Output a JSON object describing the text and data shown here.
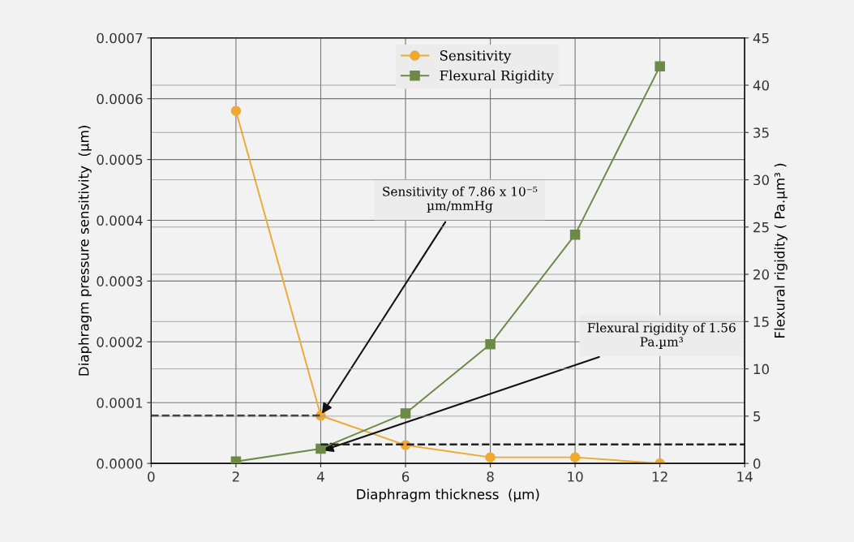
{
  "chart_data": {
    "type": "line",
    "xlabel": "Diaphragm thickness  (µm)",
    "ylabel": "Diaphragm pressure sensitivity  (µm)",
    "y2label": "Flexural rigidity ( Pa.µm³ )",
    "x": [
      2,
      4,
      6,
      8,
      10,
      12
    ],
    "series": [
      {
        "name": "Sensitivity",
        "color": "#f0a830",
        "values": [
          0.00058,
          7.86e-05,
          3e-05,
          1e-05,
          1e-05,
          0
        ],
        "marker": "circle"
      },
      {
        "name": "Flexural Rigidity",
        "color": "#6b8a45",
        "values": [
          0.2,
          1.56,
          5.3,
          12.6,
          24.2,
          42
        ],
        "axis": "y2",
        "marker": "square"
      },
      {
        "color": "#222222",
        "x": [
          0,
          4
        ],
        "values": [
          7.86e-05,
          7.86e-05
        ],
        "line_style": "dashed",
        "marker": "none"
      },
      {
        "color": "#222222",
        "x": [
          4,
          14
        ],
        "values": [
          2,
          2
        ],
        "axis": "y2",
        "line_style": "dashed",
        "marker": "none"
      }
    ],
    "xlim": [
      0,
      14
    ],
    "xticks": [
      0,
      2,
      4,
      6,
      8,
      10,
      12,
      14
    ],
    "ylim": [
      0,
      0.0007
    ],
    "yticks": [
      {
        "value": 0,
        "label": "0.0000"
      },
      {
        "value": 0.0001,
        "label": "0.0001"
      },
      {
        "value": 0.0002,
        "label": "0.0002"
      },
      {
        "value": 0.0003,
        "label": "0.0003"
      },
      {
        "value": 0.0004,
        "label": "0.0004"
      },
      {
        "value": 0.0005,
        "label": "0.0005"
      },
      {
        "value": 0.0006,
        "label": "0.0006"
      },
      {
        "value": 0.0007,
        "label": "0.0007"
      }
    ],
    "y2lim": [
      0,
      45
    ],
    "y2ticks": [
      0,
      5,
      10,
      15,
      20,
      25,
      30,
      35,
      40,
      45
    ],
    "annotations": [
      {
        "text": "Sensitivity of 7.86 x 10⁻⁵ µm/mmHg",
        "x": 4,
        "y": 7.86e-05
      },
      {
        "text": "Flexural rigidity of 1.56 Pa.µm³",
        "x": 4,
        "y": 2e-05
      }
    ],
    "grid": true,
    "legend": "top center"
  }
}
